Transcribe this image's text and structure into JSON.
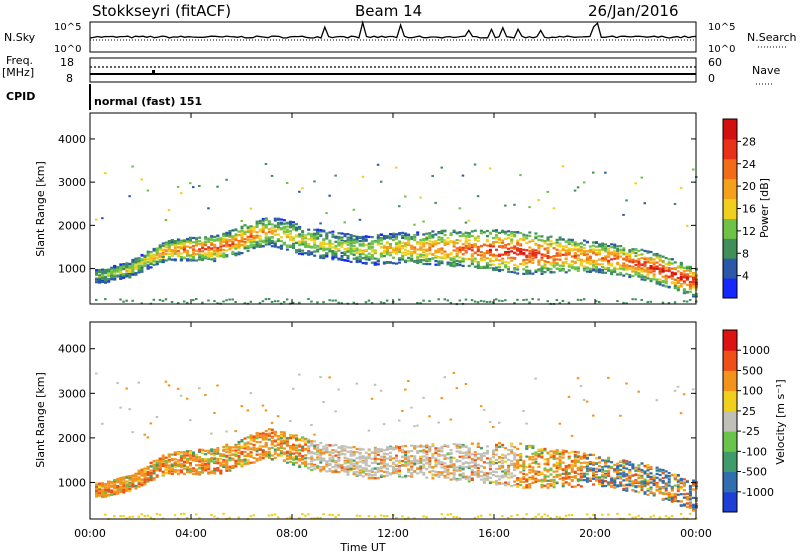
{
  "header": {
    "station": "Stokkseyri (fitACF)",
    "beam": "Beam 14",
    "date": "26/Jan/2016"
  },
  "params": {
    "nsky_label": "N.Sky",
    "nsky_ticks": [
      "10^5",
      "10^0"
    ],
    "nsearch_label": "N.Search",
    "nsearch_ticks": [
      "10^5",
      "10^0"
    ],
    "freq_label_1": "Freq.",
    "freq_label_2": "[MHz]",
    "freq_ticks": [
      "18",
      "8"
    ],
    "nave_label": "Nave",
    "nave_ticks": [
      "60",
      "0"
    ],
    "cpid_label": "CPID",
    "cpid_text": "normal (fast) 151"
  },
  "colors": {
    "power": [
      "#1428ff",
      "#2b58a8",
      "#3f8f5a",
      "#6fc248",
      "#f0d01c",
      "#f3a01a",
      "#f26c18",
      "#e93018",
      "#d40f10"
    ],
    "velocity": [
      "#1e3fd6",
      "#2f6fb0",
      "#3f9c6a",
      "#68c44a",
      "#c0c0b8",
      "#f0d01c",
      "#f3931c",
      "#ee5018",
      "#dd1212"
    ]
  },
  "chart_data": [
    {
      "type": "heatmap",
      "title": "Power",
      "xlabel": "Time UT",
      "ylabel": "Slant Range [km]",
      "x_ticks": [
        "00:00",
        "04:00",
        "08:00",
        "12:00",
        "16:00",
        "20:00",
        "00:00"
      ],
      "xlim_hours": [
        0,
        24
      ],
      "y_ticks": [
        1000,
        2000,
        3000,
        4000
      ],
      "ylim": [
        180,
        4600
      ],
      "colorbar_label": "Power [dB]",
      "colorbar_ticks": [
        4,
        8,
        12,
        16,
        20,
        24,
        28
      ],
      "colorbar_range": [
        0,
        30
      ],
      "value_range": [
        0,
        30
      ],
      "band_center_km": [
        [
          0.5,
          850
        ],
        [
          1.5,
          1000
        ],
        [
          3,
          1450
        ],
        [
          5,
          1500
        ],
        [
          7,
          1900
        ],
        [
          9,
          1600
        ],
        [
          11,
          1450
        ],
        [
          12.5,
          1500
        ],
        [
          14,
          1500
        ],
        [
          16,
          1450
        ],
        [
          17,
          1400
        ],
        [
          18,
          1350
        ],
        [
          20,
          1300
        ],
        [
          22,
          1100
        ],
        [
          24,
          700
        ]
      ],
      "band_halfwidth_km": [
        [
          0,
          150
        ],
        [
          2,
          200
        ],
        [
          5,
          300
        ],
        [
          8,
          350
        ],
        [
          10,
          320
        ],
        [
          14,
          400
        ],
        [
          17,
          500
        ],
        [
          20,
          350
        ],
        [
          24,
          350
        ]
      ],
      "band_peak": [
        [
          0,
          12
        ],
        [
          2,
          16
        ],
        [
          4,
          24
        ],
        [
          6,
          22
        ],
        [
          8,
          16
        ],
        [
          10,
          14
        ],
        [
          12,
          18
        ],
        [
          15,
          24
        ],
        [
          17,
          28
        ],
        [
          19,
          22
        ],
        [
          21,
          24
        ],
        [
          23,
          28
        ],
        [
          24,
          26
        ]
      ]
    },
    {
      "type": "heatmap",
      "title": "Velocity",
      "xlabel": "Time UT",
      "ylabel": "Slant Range [km]",
      "x_ticks": [
        "00:00",
        "04:00",
        "08:00",
        "12:00",
        "16:00",
        "20:00",
        "00:00"
      ],
      "xlim_hours": [
        0,
        24
      ],
      "y_ticks": [
        1000,
        2000,
        3000,
        4000
      ],
      "ylim": [
        180,
        4600
      ],
      "colorbar_label": "Velocity [m s⁻¹]",
      "colorbar_ticks": [
        1000,
        500,
        100,
        25,
        -25,
        -100,
        -500,
        -1000
      ],
      "value_range": [
        -1000,
        1000
      ],
      "ground_scatter_hours": [
        8.5,
        16.8
      ],
      "band_center_km": [
        [
          0.5,
          850
        ],
        [
          1.5,
          1000
        ],
        [
          3,
          1450
        ],
        [
          5,
          1500
        ],
        [
          7,
          1900
        ],
        [
          9,
          1600
        ],
        [
          11,
          1450
        ],
        [
          12.5,
          1500
        ],
        [
          14,
          1500
        ],
        [
          16,
          1450
        ],
        [
          17,
          1400
        ],
        [
          18,
          1350
        ],
        [
          20,
          1300
        ],
        [
          22,
          1100
        ],
        [
          24,
          700
        ]
      ],
      "band_halfwidth_km": [
        [
          0,
          150
        ],
        [
          2,
          200
        ],
        [
          5,
          300
        ],
        [
          8,
          350
        ],
        [
          10,
          320
        ],
        [
          14,
          400
        ],
        [
          17,
          500
        ],
        [
          20,
          350
        ],
        [
          24,
          350
        ]
      ]
    }
  ]
}
